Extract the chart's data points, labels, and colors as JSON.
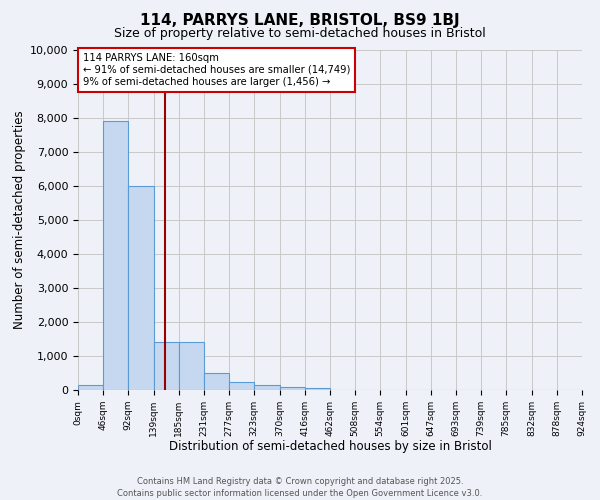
{
  "title": "114, PARRYS LANE, BRISTOL, BS9 1BJ",
  "subtitle": "Size of property relative to semi-detached houses in Bristol",
  "xlabel": "Distribution of semi-detached houses by size in Bristol",
  "ylabel": "Number of semi-detached properties",
  "annotation_line1": "114 PARRYS LANE: 160sqm",
  "annotation_line2": "← 91% of semi-detached houses are smaller (14,749)",
  "annotation_line3": "9% of semi-detached houses are larger (1,456) →",
  "bin_edges": [
    0,
    46,
    92,
    139,
    185,
    231,
    277,
    323,
    370,
    416,
    462,
    508,
    554,
    601,
    647,
    693,
    739,
    785,
    832,
    878,
    924
  ],
  "bin_labels": [
    "0sqm",
    "46sqm",
    "92sqm",
    "139sqm",
    "185sqm",
    "231sqm",
    "277sqm",
    "323sqm",
    "370sqm",
    "416sqm",
    "462sqm",
    "508sqm",
    "554sqm",
    "601sqm",
    "647sqm",
    "693sqm",
    "739sqm",
    "785sqm",
    "832sqm",
    "878sqm",
    "924sqm"
  ],
  "bar_heights": [
    150,
    7900,
    6000,
    1400,
    1400,
    500,
    250,
    150,
    100,
    50,
    5,
    2,
    1,
    0,
    0,
    0,
    0,
    0,
    0,
    0
  ],
  "bar_color": "#c5d8f0",
  "bar_edgecolor": "#5b9bd5",
  "vline_color": "#990000",
  "vline_x": 160,
  "ylim": [
    0,
    10000
  ],
  "yticks": [
    0,
    1000,
    2000,
    3000,
    4000,
    5000,
    6000,
    7000,
    8000,
    9000,
    10000
  ],
  "grid_color": "#c8c8c8",
  "background_color": "#eef2f8",
  "annotation_box_color": "#ffffff",
  "annotation_box_edgecolor": "#cc0000",
  "footer_line1": "Contains HM Land Registry data © Crown copyright and database right 2025.",
  "footer_line2": "Contains public sector information licensed under the Open Government Licence v3.0."
}
